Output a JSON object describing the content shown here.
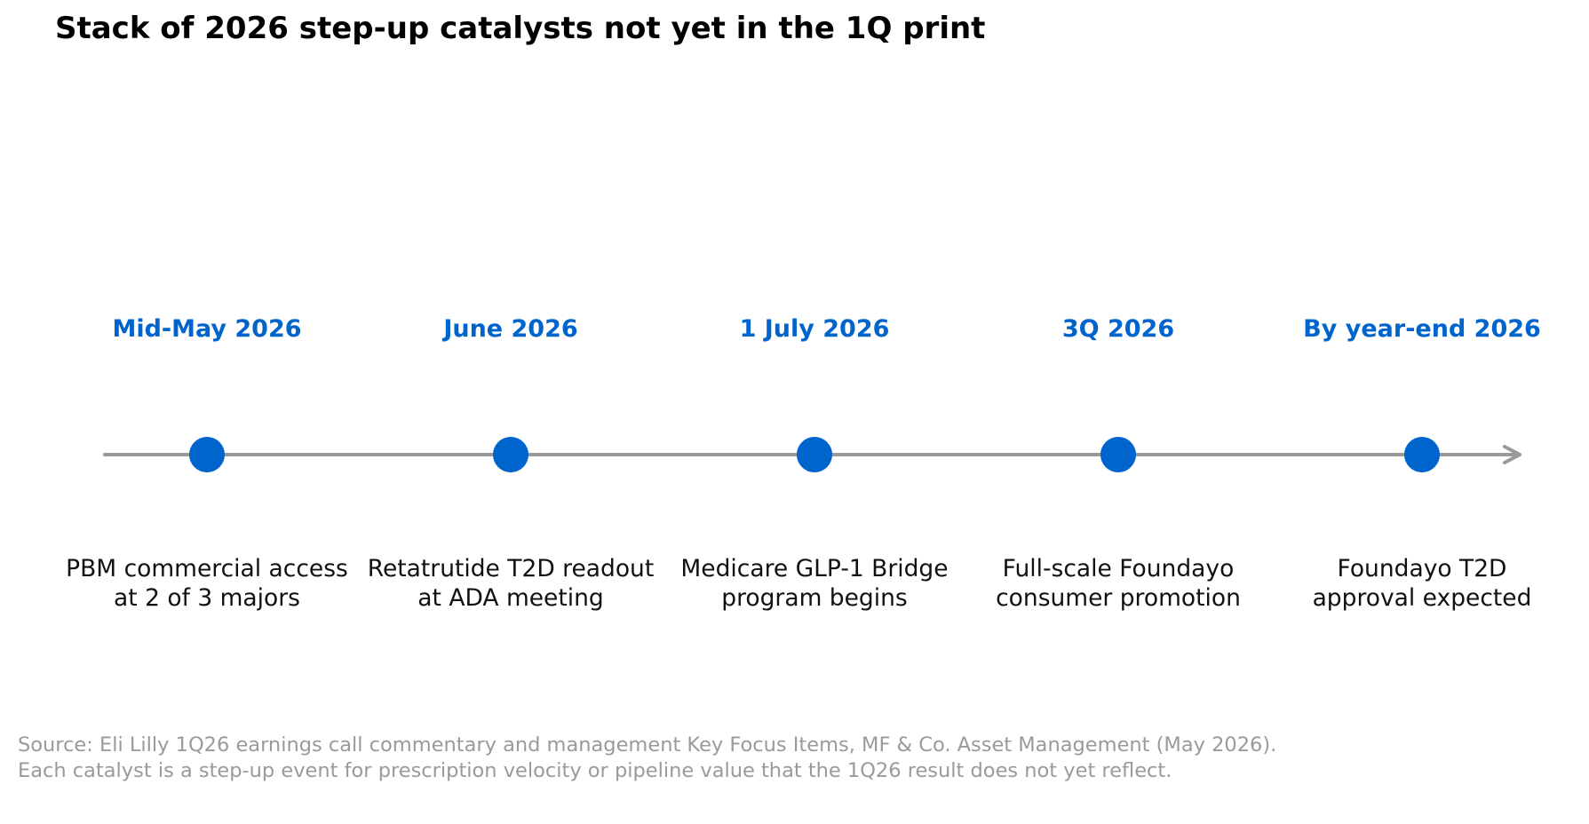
{
  "title": "Stack of 2026 step-up catalysts not yet in the 1Q print",
  "colors": {
    "marker": "#0064cd",
    "date_text": "#0064cd",
    "axis_line": "#999999",
    "event_text": "#111111",
    "source_text": "#9a9a9a"
  },
  "events": [
    {
      "date": "Mid-May 2026",
      "line1": "PBM commercial access",
      "line2": "at 2 of 3 majors"
    },
    {
      "date": "June 2026",
      "line1": "Retatrutide T2D readout",
      "line2": "at ADA meeting"
    },
    {
      "date": "1 July 2026",
      "line1": "Medicare GLP-1 Bridge",
      "line2": "program begins"
    },
    {
      "date": "3Q 2026",
      "line1": "Full-scale Foundayo",
      "line2": "consumer promotion"
    },
    {
      "date": "By year-end 2026",
      "line1": "Foundayo T2D",
      "line2": "approval expected"
    }
  ],
  "source": "Source: Eli Lilly 1Q26 earnings call commentary and management Key Focus Items, MF & Co. Asset Management (May 2026). Each catalyst is a step-up event for prescription velocity or pipeline value that the 1Q26 result does not yet reflect."
}
